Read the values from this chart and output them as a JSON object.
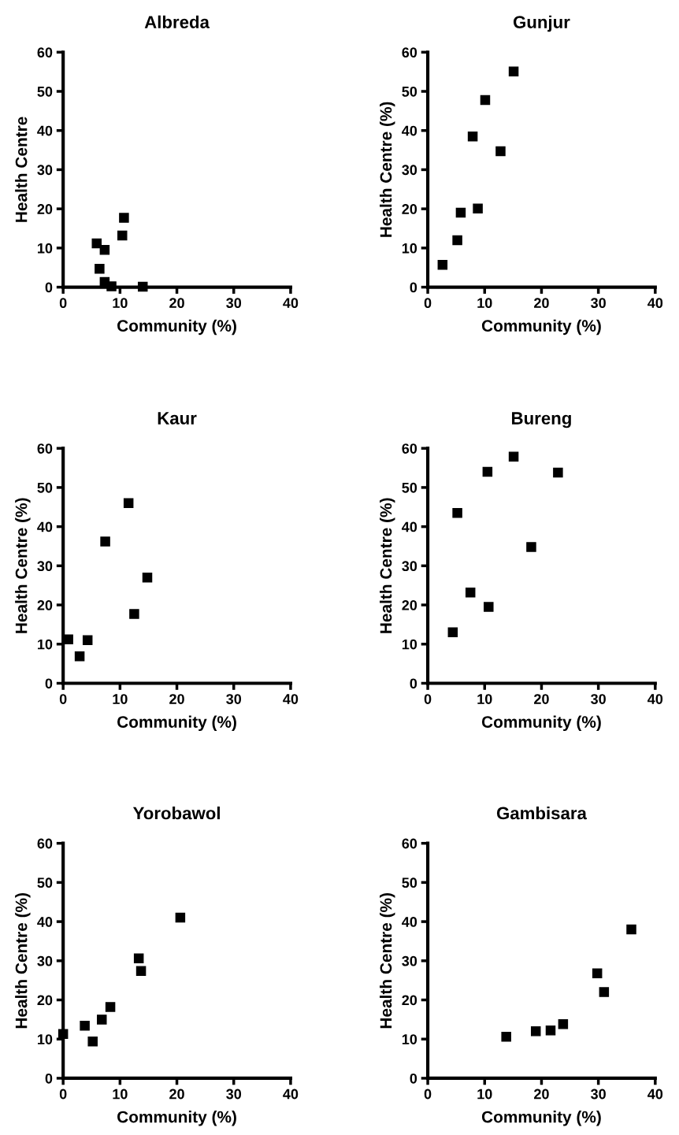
{
  "chart_data": [
    {
      "type": "scatter",
      "title": "Albreda",
      "xlabel": "Community (%)",
      "ylabel": "Health Centre",
      "x": [
        5.9,
        6.4,
        7.3,
        7.3,
        8.5,
        10.4,
        10.7,
        14.0
      ],
      "values": [
        11.2,
        4.7,
        9.5,
        1.3,
        0.2,
        13.2,
        17.7,
        0.1
      ],
      "color": "#000000",
      "marker": "square",
      "xlim": [
        0,
        40
      ],
      "ylim": [
        0,
        60
      ],
      "xticks": [
        0,
        10,
        20,
        30,
        40
      ],
      "yticks": [
        0,
        10,
        20,
        30,
        40,
        50,
        60
      ],
      "grid": false,
      "legend": false
    },
    {
      "type": "scatter",
      "title": "Gunjur",
      "xlabel": "Community (%)",
      "ylabel": "Health Centre (%)",
      "x": [
        2.6,
        5.2,
        5.8,
        7.9,
        8.8,
        10.1,
        12.8,
        15.1
      ],
      "values": [
        5.7,
        12.0,
        19.0,
        38.5,
        20.1,
        47.8,
        34.7,
        55.1
      ],
      "color": "#000000",
      "marker": "square",
      "xlim": [
        0,
        40
      ],
      "ylim": [
        0,
        60
      ],
      "xticks": [
        0,
        10,
        20,
        30,
        40
      ],
      "yticks": [
        0,
        10,
        20,
        30,
        40,
        50,
        60
      ],
      "grid": false,
      "legend": false
    },
    {
      "type": "scatter",
      "title": "Kaur",
      "xlabel": "Community (%)",
      "ylabel": "Health Centre (%)",
      "x": [
        0.9,
        2.9,
        4.3,
        7.4,
        11.5,
        12.5,
        14.8
      ],
      "values": [
        11.2,
        6.9,
        11.0,
        36.2,
        46.0,
        17.7,
        27.0
      ],
      "color": "#000000",
      "marker": "square",
      "xlim": [
        0,
        40
      ],
      "ylim": [
        0,
        60
      ],
      "xticks": [
        0,
        10,
        20,
        30,
        40
      ],
      "yticks": [
        0,
        10,
        20,
        30,
        40,
        50,
        60
      ],
      "grid": false,
      "legend": false
    },
    {
      "type": "scatter",
      "title": "Bureng",
      "xlabel": "Community (%)",
      "ylabel": "Health Centre (%)",
      "x": [
        4.4,
        5.2,
        7.5,
        10.5,
        10.7,
        15.1,
        18.2,
        22.9
      ],
      "values": [
        13.0,
        43.5,
        23.2,
        54.0,
        19.5,
        57.9,
        34.8,
        53.8
      ],
      "color": "#000000",
      "marker": "square",
      "xlim": [
        0,
        40
      ],
      "ylim": [
        0,
        60
      ],
      "xticks": [
        0,
        10,
        20,
        30,
        40
      ],
      "yticks": [
        0,
        10,
        20,
        30,
        40,
        50,
        60
      ],
      "grid": false,
      "legend": false
    },
    {
      "type": "scatter",
      "title": "Yorobawol",
      "xlabel": "Community (%)",
      "ylabel": "Health Centre (%)",
      "x": [
        0.0,
        3.8,
        5.2,
        6.8,
        8.3,
        13.3,
        13.7,
        20.6
      ],
      "values": [
        11.3,
        13.4,
        9.4,
        15.0,
        18.2,
        30.6,
        27.4,
        41.0
      ],
      "color": "#000000",
      "marker": "square",
      "xlim": [
        0,
        40
      ],
      "ylim": [
        0,
        60
      ],
      "xticks": [
        0,
        10,
        20,
        30,
        40
      ],
      "yticks": [
        0,
        10,
        20,
        30,
        40,
        50,
        60
      ],
      "grid": false,
      "legend": false
    },
    {
      "type": "scatter",
      "title": "Gambisara",
      "xlabel": "Community (%)",
      "ylabel": "Health Centre (%)",
      "x": [
        13.8,
        19.0,
        21.6,
        23.8,
        29.8,
        31.0,
        35.8
      ],
      "values": [
        10.6,
        12.0,
        12.2,
        13.8,
        26.8,
        22.0,
        38.0
      ],
      "color": "#000000",
      "marker": "square",
      "xlim": [
        0,
        40
      ],
      "ylim": [
        0,
        60
      ],
      "xticks": [
        0,
        10,
        20,
        30,
        40
      ],
      "yticks": [
        0,
        10,
        20,
        30,
        40,
        50,
        60
      ],
      "grid": false,
      "legend": false
    }
  ]
}
